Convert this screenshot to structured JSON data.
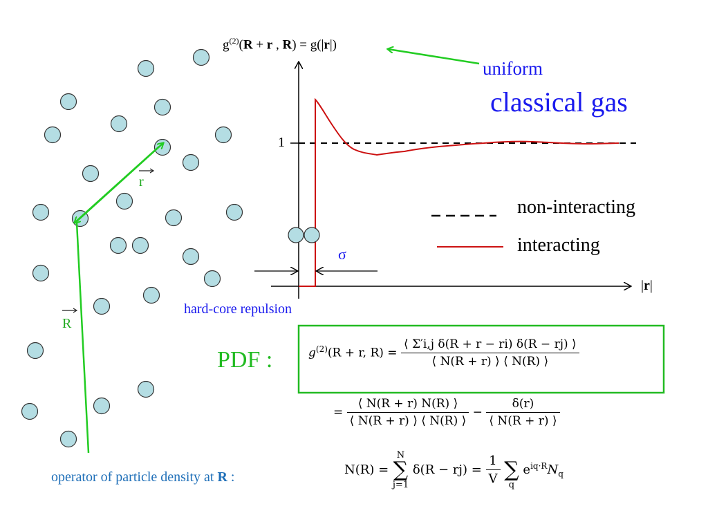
{
  "colors": {
    "particle_fill": "#b4dde3",
    "particle_stroke": "#333333",
    "arrow_green": "#22cc22",
    "interacting_red": "#cc1111",
    "blue_text": "#1a1aee",
    "teal_text": "#1f6fb8",
    "pdf_green": "#22bb22"
  },
  "labels": {
    "r_vec": "r",
    "R_vec": "R",
    "axis_y_title_a": "g",
    "axis_y_title_sup": "(2)",
    "axis_y_title_b": "(",
    "axis_y_title_R1": "R",
    "axis_y_title_c": " + ",
    "axis_y_title_r": "r",
    "axis_y_title_d": " , ",
    "axis_y_title_R2": "R",
    "axis_y_title_e": ") = g(|",
    "axis_y_title_r2": "r",
    "axis_y_title_f": "|)",
    "uniform": "uniform",
    "classical_gas": "classical gas",
    "one_tick": "1",
    "x_axis_a": "|",
    "x_axis_r": "r",
    "x_axis_b": "|",
    "sigma": "σ",
    "hard_core": "hard-core repulsion",
    "legend_noninteracting": "non-interacting",
    "legend_interacting": "interacting",
    "pdf_label": "PDF :",
    "operator_text": "operator of particle density at ",
    "operator_R": "R",
    "operator_colon": " :"
  },
  "equations": {
    "pdf_lhs_g": "g",
    "pdf_lhs_sup": "(2)",
    "pdf_lhs_args": "(R + r, R) =",
    "pdf_num": "⟨ Σ′i,j δ(R + r − ri) δ(R − rj) ⟩",
    "pdf_den": "⟨ N(R + r) ⟩ ⟨ N(R) ⟩",
    "eq2_eq": "=",
    "eq2_num1": "⟨ N(R + r) N(R) ⟩",
    "eq2_den1": "⟨ N(R + r) ⟩ ⟨ N(R) ⟩",
    "eq2_minus": "−",
    "eq2_num2": "δ(r)",
    "eq2_den2": "⟨ N(R + r) ⟩",
    "eq3_lhs": "N(R) =",
    "eq3_sum1_top": "N",
    "eq3_sum1_bot": "j=1",
    "eq3_mid": "δ(R − rj) =",
    "eq3_one": "1",
    "eq3_V": "V",
    "eq3_sum2_bot": "q",
    "eq3_exp_base": "e",
    "eq3_exp": "iq·R",
    "eq3_Nq": "N",
    "eq3_Nq_sub": "q"
  }
}
